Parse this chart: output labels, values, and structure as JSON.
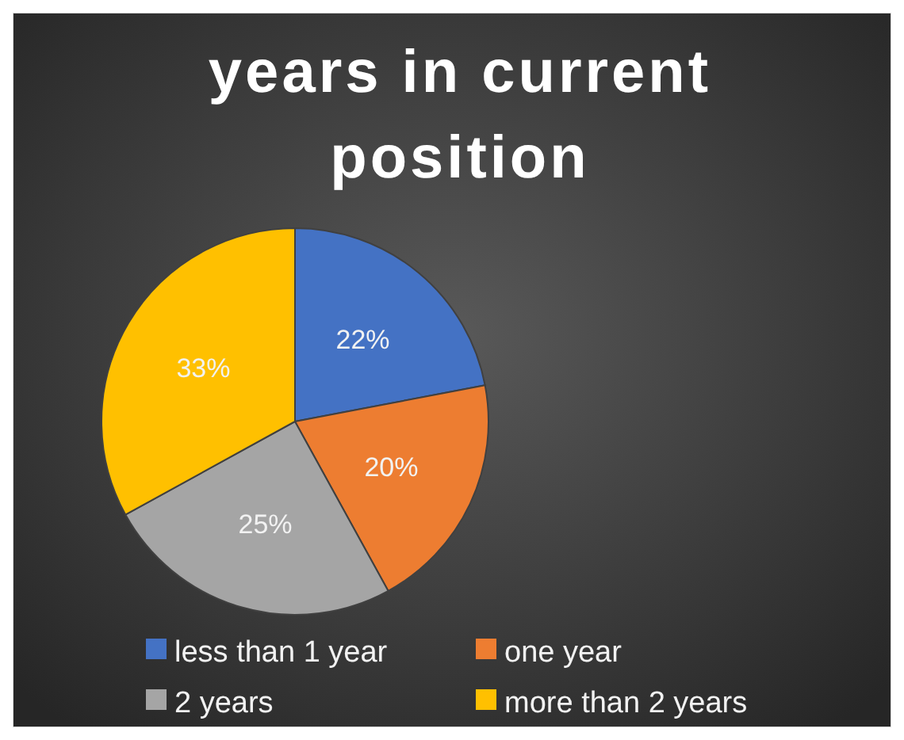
{
  "chart_data": {
    "type": "pie",
    "title": "years in current position",
    "categories": [
      "less than 1 year",
      "one year",
      "2 years",
      "more than 2 years"
    ],
    "values": [
      22,
      20,
      25,
      33
    ],
    "colors": [
      "#4472c4",
      "#ed7d31",
      "#a5a5a5",
      "#ffc000"
    ],
    "value_labels": [
      "22%",
      "20%",
      "25%",
      "33%"
    ],
    "legend": "bottom"
  }
}
